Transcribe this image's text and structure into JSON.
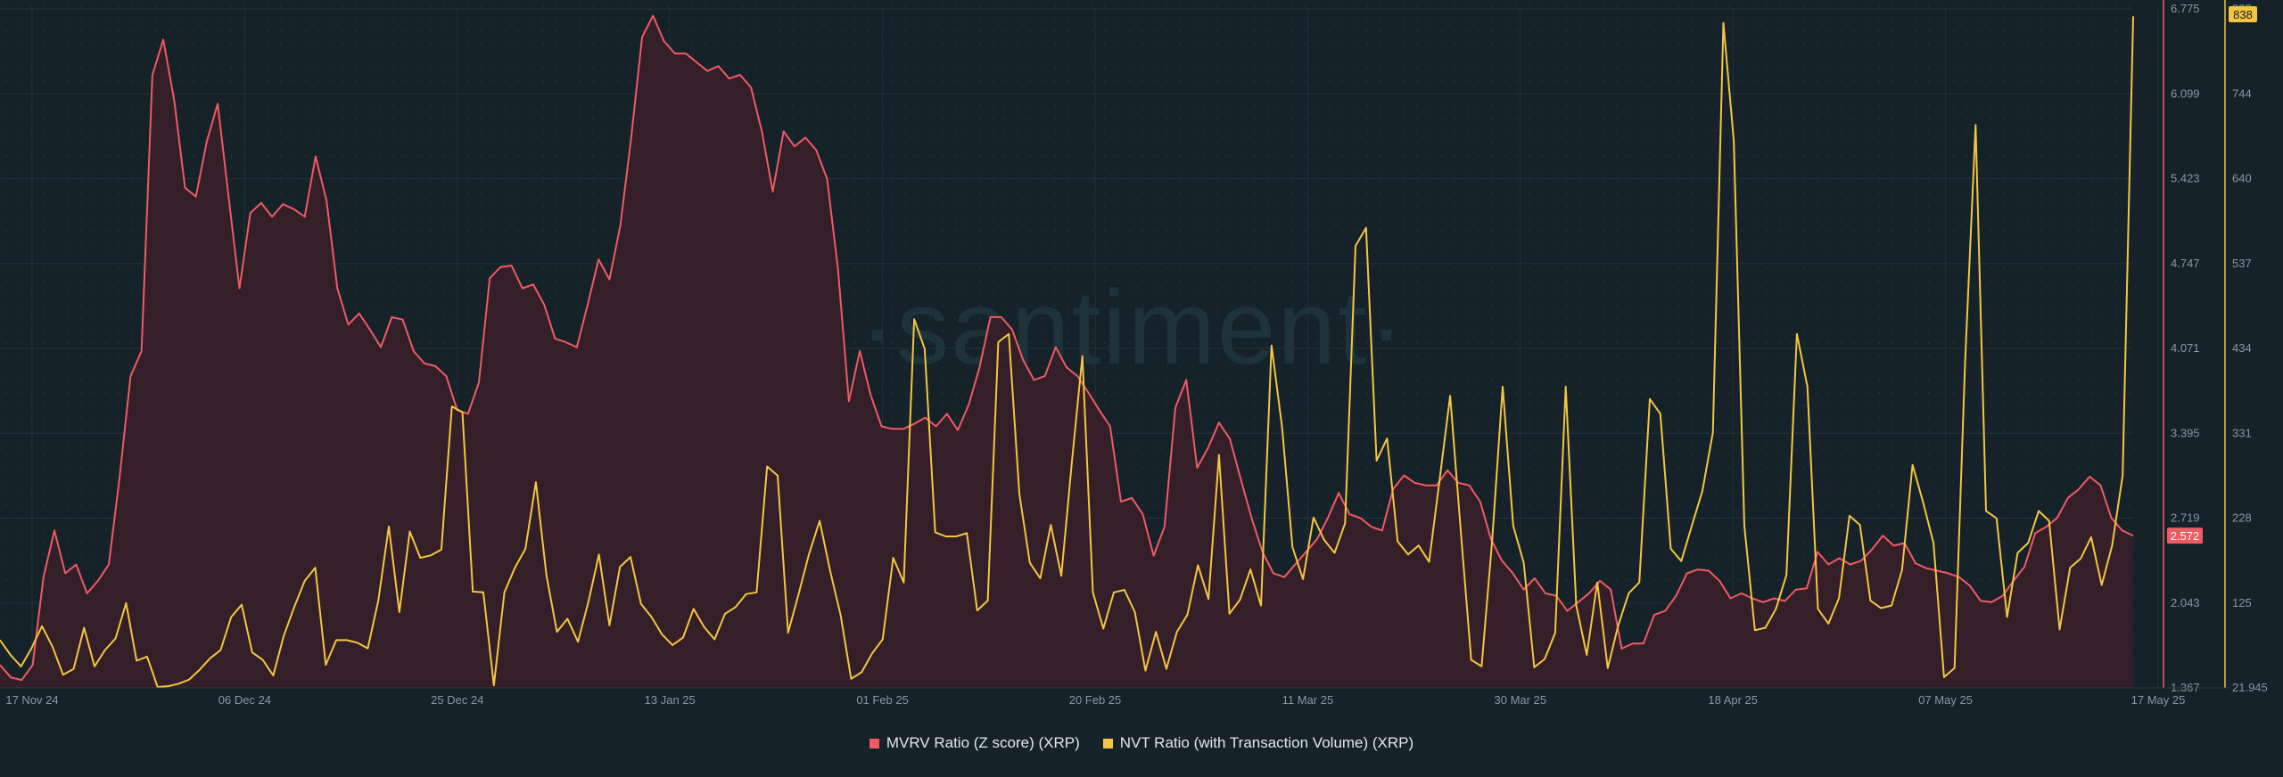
{
  "watermark": "·santiment·",
  "legend": {
    "mvrv_label": "MVRV Ratio (Z score) (XRP)",
    "nvt_label": "NVT Ratio (with Transaction Volume) (XRP)"
  },
  "colors": {
    "background": "#16222a",
    "mvrv": "#ef5a63",
    "nvt": "#f4c542",
    "grid": "#22313a"
  },
  "chart_data": {
    "type": "line",
    "x_ticks": [
      "17 Nov 24",
      "06 Dec 24",
      "25 Dec 24",
      "13 Jan 25",
      "01 Feb 25",
      "20 Feb 25",
      "11 Mar 25",
      "30 Mar 25",
      "18 Apr 25",
      "07 May 25",
      "17 May 25"
    ],
    "x_range": [
      "2024-11-17",
      "2025-05-17"
    ],
    "grid": true,
    "legend_position": "bottom",
    "y_left": {
      "ticks": [
        "6.775",
        "6.099",
        "5.423",
        "4.747",
        "4.071",
        "3.395",
        "2.719",
        "2.043",
        "1.367"
      ],
      "range": [
        1.367,
        6.775
      ],
      "current_value_label": "2.572"
    },
    "y_right": {
      "ticks": [
        "838",
        "744",
        "640",
        "537",
        "434",
        "331",
        "228",
        "125",
        "21.945"
      ],
      "range": [
        21.945,
        847
      ],
      "current_value_label": "838"
    },
    "series": [
      {
        "name": "MVRV Ratio (Z score) (XRP)",
        "axis": "left",
        "style": "area",
        "values": [
          1.55,
          1.45,
          1.43,
          1.55,
          2.25,
          2.62,
          2.28,
          2.35,
          2.12,
          2.22,
          2.35,
          3.05,
          3.85,
          4.05,
          6.25,
          6.53,
          6.05,
          5.35,
          5.28,
          5.72,
          6.02,
          5.28,
          4.55,
          5.15,
          5.23,
          5.12,
          5.22,
          5.18,
          5.12,
          5.6,
          5.25,
          4.55,
          4.26,
          4.35,
          4.22,
          4.08,
          4.32,
          4.3,
          4.05,
          3.95,
          3.93,
          3.85,
          3.58,
          3.55,
          3.8,
          4.63,
          4.72,
          4.73,
          4.55,
          4.58,
          4.42,
          4.15,
          4.12,
          4.08,
          4.42,
          4.78,
          4.62,
          5.05,
          5.75,
          6.55,
          6.72,
          6.52,
          6.42,
          6.42,
          6.35,
          6.28,
          6.32,
          6.22,
          6.25,
          6.15,
          5.8,
          5.32,
          5.8,
          5.68,
          5.75,
          5.65,
          5.42,
          4.7,
          3.65,
          4.05,
          3.7,
          3.45,
          3.43,
          3.43,
          3.47,
          3.52,
          3.45,
          3.55,
          3.42,
          3.62,
          3.92,
          4.32,
          4.32,
          4.22,
          3.98,
          3.82,
          3.85,
          4.08,
          3.92,
          3.85,
          3.72,
          3.58,
          3.45,
          2.85,
          2.88,
          2.75,
          2.42,
          2.65,
          3.6,
          3.82,
          3.12,
          3.28,
          3.48,
          3.35,
          3.03,
          2.72,
          2.45,
          2.28,
          2.25,
          2.35,
          2.45,
          2.55,
          2.72,
          2.92,
          2.75,
          2.72,
          2.65,
          2.62,
          2.95,
          3.06,
          3.0,
          2.98,
          2.98,
          3.1,
          3.0,
          2.98,
          2.85,
          2.55,
          2.38,
          2.28,
          2.15,
          2.24,
          2.12,
          2.1,
          1.98,
          2.05,
          2.12,
          2.22,
          2.15,
          1.68,
          1.72,
          1.72,
          1.95,
          1.98,
          2.1,
          2.28,
          2.31,
          2.3,
          2.22,
          2.08,
          2.12,
          2.08,
          2.05,
          2.08,
          2.06,
          2.15,
          2.16,
          2.45,
          2.35,
          2.4,
          2.35,
          2.38,
          2.47,
          2.58,
          2.5,
          2.52,
          2.36,
          2.32,
          2.3,
          2.28,
          2.25,
          2.18,
          2.06,
          2.05,
          2.1,
          2.22,
          2.33,
          2.6,
          2.65,
          2.72,
          2.88,
          2.95,
          3.05,
          2.98,
          2.72,
          2.62,
          2.58
        ]
      },
      {
        "name": "NVT Ratio (with Transaction Volume) (XRP)",
        "axis": "right",
        "style": "line",
        "values": [
          80,
          62,
          48,
          70,
          97,
          72,
          38,
          45,
          95,
          48,
          68,
          82,
          125,
          55,
          60,
          23,
          24,
          27,
          32,
          44,
          58,
          68,
          108,
          123,
          65,
          56,
          37,
          85,
          120,
          152,
          168,
          50,
          80,
          80,
          77,
          70,
          128,
          218,
          114,
          212,
          180,
          183,
          190,
          364,
          357,
          139,
          138,
          25,
          138,
          168,
          191,
          272,
          159,
          90,
          106,
          78,
          127,
          184,
          98,
          169,
          181,
          124,
          108,
          87,
          74,
          83,
          118,
          96,
          81,
          112,
          120,
          136,
          138,
          291,
          280,
          89,
          136,
          185,
          225,
          164,
          110,
          33,
          41,
          64,
          81,
          180,
          150,
          470,
          434,
          211,
          206,
          206,
          210,
          116,
          128,
          442,
          452,
          258,
          174,
          155,
          220,
          158,
          296,
          425,
          138,
          94,
          138,
          141,
          114,
          43,
          90,
          45,
          90,
          111,
          171,
          130,
          305,
          112,
          129,
          166,
          122,
          438,
          339,
          193,
          154,
          229,
          202,
          186,
          222,
          559,
          581,
          298,
          325,
          200,
          184,
          195,
          175,
          275,
          377,
          214,
          56,
          48,
          201,
          388,
          219,
          174,
          47,
          57,
          89,
          388,
          122,
          62,
          150,
          46,
          98,
          137,
          150,
          373,
          355,
          191,
          176,
          219,
          261,
          332,
          830,
          686,
          219,
          92,
          95,
          118,
          159,
          452,
          388,
          118,
          100,
          131,
          231,
          220,
          128,
          119,
          122,
          165,
          293,
          248,
          198,
          35,
          46,
          417,
          706,
          237,
          228,
          108,
          186,
          198,
          237,
          225,
          93,
          168,
          179,
          205,
          147,
          195,
          280,
          838
        ]
      }
    ]
  }
}
